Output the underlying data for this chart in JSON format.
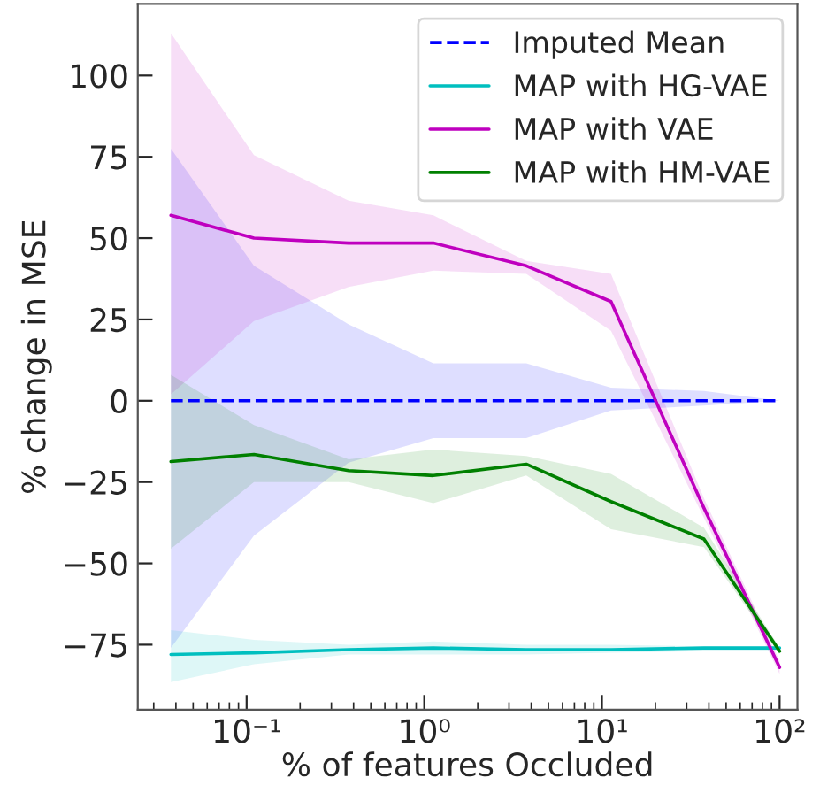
{
  "chart_data": {
    "type": "line",
    "xlabel": "% of features Occluded",
    "ylabel": "% change in MSE",
    "log": "x",
    "xlim": [
      0.0244,
      126
    ],
    "ylim": [
      -95,
      122
    ],
    "xticks": [
      {
        "value": 0.1,
        "label": "10⁻¹"
      },
      {
        "value": 1,
        "label": "10⁰"
      },
      {
        "value": 10,
        "label": "10¹"
      },
      {
        "value": 100,
        "label": "10²"
      }
    ],
    "yticks": [
      -75,
      -50,
      -25,
      0,
      25,
      50,
      75,
      100
    ],
    "x": [
      0.0375,
      0.11,
      0.375,
      1.125,
      3.75,
      11.25,
      37.5,
      100
    ],
    "legend": "top right",
    "grid": false,
    "marker": "none",
    "series": [
      {
        "name": "Imputed Mean",
        "color": "#0000ff",
        "line_style": "dashed",
        "values": [
          0,
          0,
          0,
          0,
          0,
          0,
          0,
          0
        ],
        "lower": [
          -76,
          -41.5,
          -19,
          -11.5,
          -11.5,
          -3,
          -1.5,
          0
        ],
        "upper": [
          77.5,
          41.5,
          23.5,
          11.5,
          11.5,
          4,
          3,
          0
        ]
      },
      {
        "name": "MAP with HG-VAE",
        "color": "#00bfbf",
        "line_style": "solid",
        "values": [
          -78,
          -77.5,
          -76.5,
          -76,
          -76.5,
          -76.5,
          -76,
          -76
        ],
        "lower": [
          -86.5,
          -81,
          -78,
          -78,
          -78,
          -77.5,
          -77,
          -77
        ],
        "upper": [
          -70.5,
          -73.5,
          -75,
          -74,
          -75,
          -75,
          -75.5,
          -75.5
        ]
      },
      {
        "name": "MAP with VAE",
        "color": "#bf00bf",
        "line_style": "solid",
        "values": [
          57,
          50,
          48.5,
          48.5,
          41.5,
          30.5,
          -33,
          -82
        ],
        "lower": [
          2,
          24.5,
          35,
          40,
          39,
          21.5,
          -36,
          -84
        ],
        "upper": [
          113,
          75.5,
          61.5,
          57,
          43,
          39,
          -30,
          -80
        ]
      },
      {
        "name": "MAP with HM-VAE",
        "color": "#008000",
        "line_style": "solid",
        "values": [
          -18.7,
          -16.5,
          -21.5,
          -23,
          -19.5,
          -31,
          -42.5,
          -77
        ],
        "lower": [
          -45.5,
          -25,
          -25,
          -31.5,
          -23,
          -39.5,
          -45,
          -78
        ],
        "upper": [
          8,
          -7.5,
          -18,
          -15,
          -17,
          -22.5,
          -39,
          -76
        ]
      }
    ]
  }
}
